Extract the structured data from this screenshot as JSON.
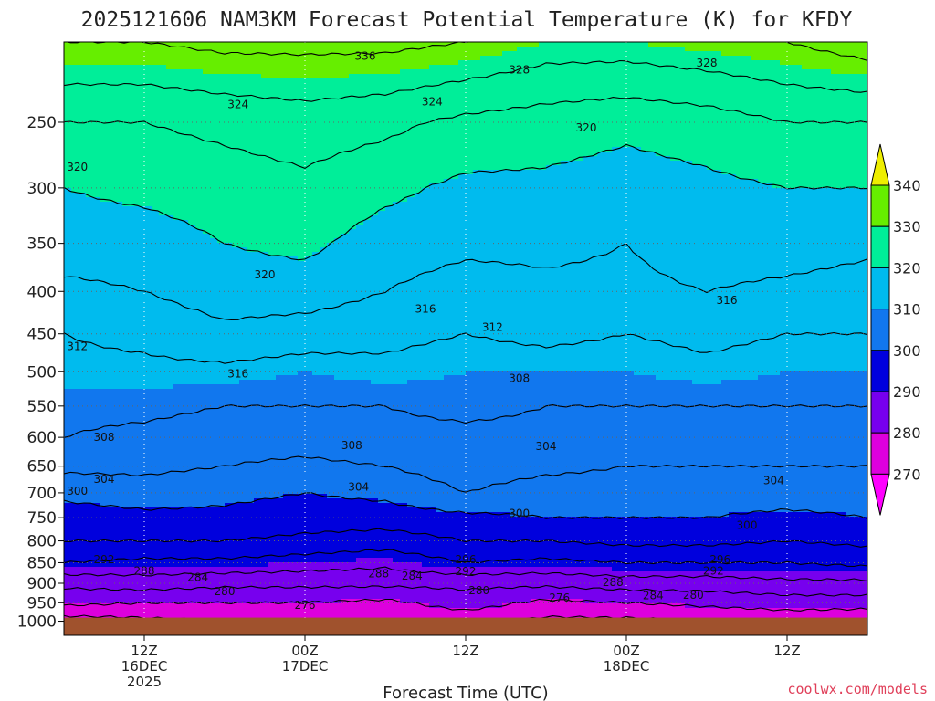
{
  "title": "2025121606 NAM3KM Forecast Potential Temperature (K) for KFDY",
  "credit": "coolwx.com/models",
  "colors": {
    "ground": "#a0522d",
    "credit": "#e0405a",
    "grid": "#666666"
  },
  "chart_data": {
    "type": "contour",
    "variable": "Potential Temperature (K)",
    "station": "KFDY",
    "model": "NAM3KM",
    "init": "2025121606",
    "xlabel": "Forecast Time (UTC)",
    "ylabel": "",
    "x_ticks": [
      {
        "hour": 6,
        "label": "12Z",
        "sub": [
          "16DEC",
          "2025"
        ]
      },
      {
        "hour": 18,
        "label": "00Z",
        "sub": [
          "17DEC"
        ]
      },
      {
        "hour": 30,
        "label": "12Z",
        "sub": []
      },
      {
        "hour": 42,
        "label": "00Z",
        "sub": [
          "18DEC"
        ]
      },
      {
        "hour": 54,
        "label": "12Z",
        "sub": []
      }
    ],
    "x_range_hours": [
      0,
      60
    ],
    "y_ticks": [
      "250",
      "300",
      "350",
      "400",
      "450",
      "500",
      "550",
      "600",
      "650",
      "700",
      "750",
      "800",
      "850",
      "900",
      "950",
      "1000"
    ],
    "y_range_hpa": [
      200,
      1040
    ],
    "ground_pressure_hpa": 990,
    "colorbar": {
      "labels": [
        "340",
        "330",
        "320",
        "310",
        "300",
        "290",
        "280",
        "270"
      ],
      "bands": [
        {
          "min": 330,
          "max": 340,
          "color": "#66ee00"
        },
        {
          "min": 320,
          "max": 330,
          "color": "#00ee99"
        },
        {
          "min": 310,
          "max": 320,
          "color": "#00bbee"
        },
        {
          "min": 300,
          "max": 310,
          "color": "#1177ee"
        },
        {
          "min": 290,
          "max": 300,
          "color": "#0000dd"
        },
        {
          "min": 280,
          "max": 290,
          "color": "#7700ee"
        },
        {
          "min": 270,
          "max": 280,
          "color": "#dd00dd"
        }
      ],
      "over_color": "#eeee00",
      "under_color": "#ff00ff"
    },
    "theta_levels": [
      276,
      280,
      284,
      288,
      292,
      296,
      300,
      304,
      308,
      312,
      316,
      320,
      324,
      328,
      332,
      336,
      340
    ],
    "theta_profiles": [
      {
        "hour": 0,
        "profile": [
          [
            1000,
            274
          ],
          [
            950,
            281
          ],
          [
            900,
            285
          ],
          [
            850,
            292
          ],
          [
            800,
            296
          ],
          [
            750,
            298
          ],
          [
            700,
            301
          ],
          [
            650,
            305
          ],
          [
            600,
            308
          ],
          [
            550,
            309
          ],
          [
            500,
            311
          ],
          [
            450,
            312
          ],
          [
            400,
            315
          ],
          [
            350,
            318
          ],
          [
            300,
            320
          ],
          [
            250,
            324
          ],
          [
            200,
            332
          ]
        ]
      },
      {
        "hour": 6,
        "profile": [
          [
            1000,
            275
          ],
          [
            950,
            280
          ],
          [
            900,
            286
          ],
          [
            850,
            291
          ],
          [
            800,
            296
          ],
          [
            750,
            299
          ],
          [
            700,
            302
          ],
          [
            650,
            305
          ],
          [
            600,
            307
          ],
          [
            550,
            309
          ],
          [
            500,
            311
          ],
          [
            450,
            313
          ],
          [
            400,
            316
          ],
          [
            350,
            318
          ],
          [
            300,
            321
          ],
          [
            250,
            324
          ],
          [
            200,
            332
          ]
        ]
      },
      {
        "hour": 12,
        "profile": [
          [
            1000,
            276
          ],
          [
            950,
            280
          ],
          [
            900,
            285
          ],
          [
            850,
            291
          ],
          [
            800,
            296
          ],
          [
            750,
            299
          ],
          [
            700,
            301
          ],
          [
            650,
            304
          ],
          [
            600,
            306
          ],
          [
            550,
            308
          ],
          [
            500,
            311
          ],
          [
            450,
            315
          ],
          [
            400,
            318
          ],
          [
            350,
            320
          ],
          [
            300,
            322
          ],
          [
            250,
            325
          ],
          [
            200,
            333
          ]
        ]
      },
      {
        "hour": 18,
        "profile": [
          [
            1000,
            276
          ],
          [
            950,
            280
          ],
          [
            900,
            285
          ],
          [
            850,
            290
          ],
          [
            800,
            295
          ],
          [
            750,
            298
          ],
          [
            700,
            300
          ],
          [
            650,
            303
          ],
          [
            600,
            306
          ],
          [
            550,
            308
          ],
          [
            500,
            310
          ],
          [
            450,
            314
          ],
          [
            400,
            318
          ],
          [
            350,
            321
          ],
          [
            300,
            323
          ],
          [
            250,
            326
          ],
          [
            200,
            333
          ]
        ]
      },
      {
        "hour": 24,
        "profile": [
          [
            1000,
            276
          ],
          [
            950,
            279
          ],
          [
            900,
            285
          ],
          [
            850,
            289
          ],
          [
            800,
            294
          ],
          [
            750,
            298
          ],
          [
            700,
            301
          ],
          [
            650,
            304
          ],
          [
            600,
            307
          ],
          [
            550,
            308
          ],
          [
            500,
            311
          ],
          [
            450,
            313
          ],
          [
            400,
            316
          ],
          [
            350,
            318
          ],
          [
            300,
            321
          ],
          [
            250,
            325
          ],
          [
            200,
            333
          ]
        ]
      },
      {
        "hour": 30,
        "profile": [
          [
            1000,
            277
          ],
          [
            950,
            282
          ],
          [
            900,
            285
          ],
          [
            850,
            292
          ],
          [
            800,
            296
          ],
          [
            750,
            299
          ],
          [
            700,
            304
          ],
          [
            650,
            306
          ],
          [
            600,
            307
          ],
          [
            550,
            309
          ],
          [
            500,
            310
          ],
          [
            450,
            312
          ],
          [
            400,
            314
          ],
          [
            350,
            317
          ],
          [
            300,
            319
          ],
          [
            250,
            323
          ],
          [
            200,
            332
          ]
        ]
      },
      {
        "hour": 36,
        "profile": [
          [
            1000,
            275
          ],
          [
            950,
            279
          ],
          [
            900,
            285
          ],
          [
            850,
            291
          ],
          [
            800,
            296
          ],
          [
            750,
            300
          ],
          [
            700,
            302
          ],
          [
            650,
            305
          ],
          [
            600,
            307
          ],
          [
            550,
            308
          ],
          [
            500,
            310
          ],
          [
            450,
            313
          ],
          [
            400,
            315
          ],
          [
            350,
            317
          ],
          [
            300,
            319
          ],
          [
            250,
            322
          ],
          [
            200,
            330
          ]
        ]
      },
      {
        "hour": 42,
        "profile": [
          [
            1000,
            275
          ],
          [
            950,
            280
          ],
          [
            900,
            286
          ],
          [
            850,
            292
          ],
          [
            800,
            297
          ],
          [
            750,
            300
          ],
          [
            700,
            302
          ],
          [
            650,
            304
          ],
          [
            600,
            306
          ],
          [
            550,
            308
          ],
          [
            500,
            310
          ],
          [
            450,
            312
          ],
          [
            400,
            315
          ],
          [
            350,
            316
          ],
          [
            300,
            318
          ],
          [
            250,
            321
          ],
          [
            200,
            330
          ]
        ]
      },
      {
        "hour": 48,
        "profile": [
          [
            1000,
            276
          ],
          [
            950,
            281
          ],
          [
            900,
            286
          ],
          [
            850,
            292
          ],
          [
            800,
            297
          ],
          [
            750,
            300
          ],
          [
            700,
            302
          ],
          [
            650,
            304
          ],
          [
            600,
            306
          ],
          [
            550,
            308
          ],
          [
            500,
            311
          ],
          [
            450,
            313
          ],
          [
            400,
            316
          ],
          [
            350,
            318
          ],
          [
            300,
            319
          ],
          [
            250,
            322
          ],
          [
            200,
            331
          ]
        ]
      },
      {
        "hour": 54,
        "profile": [
          [
            1000,
            277
          ],
          [
            950,
            282
          ],
          [
            900,
            287
          ],
          [
            850,
            292
          ],
          [
            800,
            296
          ],
          [
            750,
            299
          ],
          [
            700,
            302
          ],
          [
            650,
            304
          ],
          [
            600,
            306
          ],
          [
            550,
            308
          ],
          [
            500,
            310
          ],
          [
            450,
            312
          ],
          [
            400,
            315
          ],
          [
            350,
            318
          ],
          [
            300,
            320
          ],
          [
            250,
            324
          ],
          [
            200,
            332
          ]
        ]
      },
      {
        "hour": 60,
        "profile": [
          [
            1000,
            276
          ],
          [
            950,
            282
          ],
          [
            900,
            287
          ],
          [
            850,
            293
          ],
          [
            800,
            297
          ],
          [
            750,
            300
          ],
          [
            700,
            302
          ],
          [
            650,
            304
          ],
          [
            600,
            306
          ],
          [
            550,
            308
          ],
          [
            500,
            310
          ],
          [
            450,
            312
          ],
          [
            400,
            314
          ],
          [
            350,
            317
          ],
          [
            300,
            320
          ],
          [
            250,
            324
          ],
          [
            200,
            334
          ]
        ]
      }
    ],
    "contour_labels": [
      {
        "text": "336",
        "hour": 22.5,
        "hpa": 208
      },
      {
        "text": "328",
        "hour": 34,
        "hpa": 216
      },
      {
        "text": "328",
        "hour": 48,
        "hpa": 212
      },
      {
        "text": "324",
        "hour": 13,
        "hpa": 238
      },
      {
        "text": "324",
        "hour": 27.5,
        "hpa": 236
      },
      {
        "text": "320",
        "hour": 39,
        "hpa": 254
      },
      {
        "text": "320",
        "hour": 1,
        "hpa": 283
      },
      {
        "text": "320",
        "hour": 15,
        "hpa": 382
      },
      {
        "text": "316",
        "hour": 27,
        "hpa": 420
      },
      {
        "text": "312",
        "hour": 32,
        "hpa": 442
      },
      {
        "text": "316",
        "hour": 49.5,
        "hpa": 410
      },
      {
        "text": "312",
        "hour": 1,
        "hpa": 466
      },
      {
        "text": "316",
        "hour": 13,
        "hpa": 503
      },
      {
        "text": "308",
        "hour": 34,
        "hpa": 509
      },
      {
        "text": "308",
        "hour": 3,
        "hpa": 600
      },
      {
        "text": "308",
        "hour": 21.5,
        "hpa": 614
      },
      {
        "text": "304",
        "hour": 36,
        "hpa": 615
      },
      {
        "text": "304",
        "hour": 3,
        "hpa": 674
      },
      {
        "text": "300",
        "hour": 1,
        "hpa": 697
      },
      {
        "text": "304",
        "hour": 22,
        "hpa": 689
      },
      {
        "text": "304",
        "hour": 53,
        "hpa": 677
      },
      {
        "text": "300",
        "hour": 34,
        "hpa": 741
      },
      {
        "text": "300",
        "hour": 51,
        "hpa": 766
      },
      {
        "text": "292",
        "hour": 3,
        "hpa": 843
      },
      {
        "text": "288",
        "hour": 6,
        "hpa": 870
      },
      {
        "text": "284",
        "hour": 10,
        "hpa": 885
      },
      {
        "text": "296",
        "hour": 30,
        "hpa": 843
      },
      {
        "text": "288",
        "hour": 23.5,
        "hpa": 876
      },
      {
        "text": "284",
        "hour": 26,
        "hpa": 882
      },
      {
        "text": "292",
        "hour": 30,
        "hpa": 871
      },
      {
        "text": "296",
        "hour": 49,
        "hpa": 843
      },
      {
        "text": "292",
        "hour": 48.5,
        "hpa": 870
      },
      {
        "text": "280",
        "hour": 12,
        "hpa": 921
      },
      {
        "text": "280",
        "hour": 31,
        "hpa": 918
      },
      {
        "text": "288",
        "hour": 41,
        "hpa": 898
      },
      {
        "text": "280",
        "hour": 47,
        "hpa": 930
      },
      {
        "text": "284",
        "hour": 44,
        "hpa": 931
      },
      {
        "text": "276",
        "hour": 18,
        "hpa": 957
      },
      {
        "text": "276",
        "hour": 37,
        "hpa": 937
      }
    ]
  }
}
